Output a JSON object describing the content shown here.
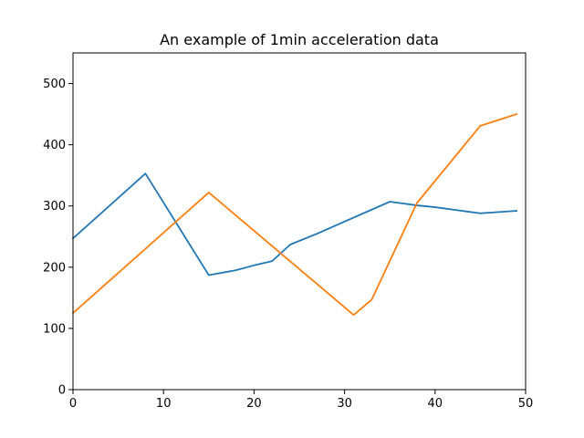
{
  "chart_data": {
    "type": "line",
    "title": "An example of 1min acceleration data",
    "xlabel": "",
    "ylabel": "",
    "xlim": [
      0,
      50
    ],
    "ylim": [
      0,
      550
    ],
    "xticks": [
      0,
      10,
      20,
      30,
      40,
      50
    ],
    "yticks": [
      0,
      100,
      200,
      300,
      400,
      500
    ],
    "grid": false,
    "series": [
      {
        "color": "#1f77b4",
        "x": [
          0,
          8,
          15,
          18,
          20,
          22,
          24,
          27,
          29,
          31,
          33,
          35,
          38,
          40,
          42,
          45,
          49
        ],
        "y": [
          247,
          353,
          187,
          195,
          203,
          210,
          237,
          255,
          268,
          281,
          294,
          307,
          301,
          298,
          294,
          288,
          292
        ]
      },
      {
        "color": "#ff7f0e",
        "x": [
          0,
          15,
          31,
          33,
          38,
          45,
          49
        ],
        "y": [
          125,
          322,
          122,
          147,
          305,
          431,
          450
        ]
      }
    ]
  }
}
